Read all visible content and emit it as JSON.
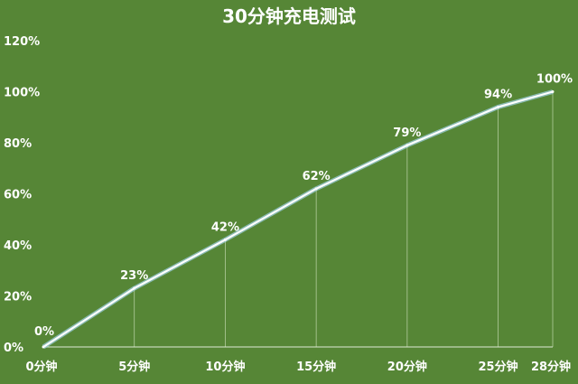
{
  "chart_data": {
    "type": "line",
    "title": "30分钟充电测试",
    "categories": [
      "0分钟",
      "5分钟",
      "10分钟",
      "15分钟",
      "20分钟",
      "25分钟",
      "28分钟"
    ],
    "x": [
      0,
      5,
      10,
      15,
      20,
      25,
      28
    ],
    "values": [
      0,
      23,
      42,
      62,
      79,
      94,
      100
    ],
    "data_labels": [
      "0%",
      "23%",
      "42%",
      "62%",
      "79%",
      "94%",
      "100%"
    ],
    "yticks": [
      "0%",
      "20%",
      "40%",
      "60%",
      "80%",
      "100%",
      "120%"
    ],
    "ylim": [
      0,
      120
    ],
    "grid": false,
    "line_color": "#ffffff",
    "background_color": "#568636"
  }
}
